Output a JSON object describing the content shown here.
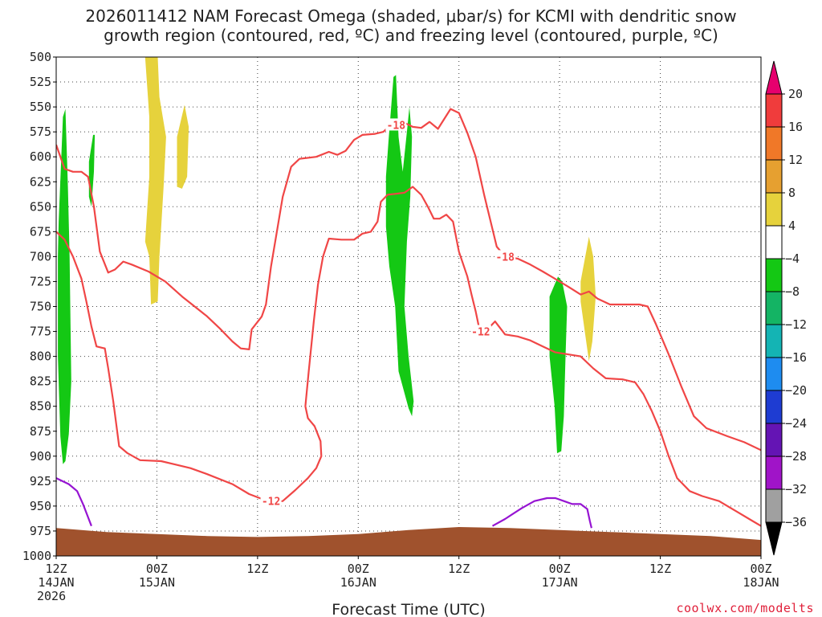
{
  "title": {
    "line1": "2026011412 NAM Forecast Omega (shaded, μbar/s) for KCMI with dendritic snow",
    "line2": "growth region (contoured, red, ºC) and freezing level (contoured, purple, ºC)"
  },
  "credit": "coolwx.com/modelts",
  "chart_data": {
    "type": "time-height contour",
    "title": "2026011412 NAM Forecast Omega (shaded, μbar/s) for KCMI with dendritic snow growth region (contoured, red, ºC) and freezing level (contoured, purple, ºC)",
    "xlabel": "Forecast Time (UTC)",
    "ylabel": "",
    "x_range_hours": [
      0,
      84
    ],
    "y_range": [
      500,
      1000
    ],
    "y_inverted": true,
    "yticks": [
      500,
      525,
      550,
      575,
      600,
      625,
      650,
      675,
      700,
      725,
      750,
      775,
      800,
      825,
      850,
      875,
      900,
      925,
      950,
      975,
      1000
    ],
    "xticks": [
      {
        "hour": 0,
        "line1": "12Z",
        "line2": "14JAN",
        "line3": "2026"
      },
      {
        "hour": 12,
        "line1": "00Z",
        "line2": "15JAN",
        "line3": ""
      },
      {
        "hour": 24,
        "line1": "12Z",
        "line2": "",
        "line3": ""
      },
      {
        "hour": 36,
        "line1": "00Z",
        "line2": "16JAN",
        "line3": ""
      },
      {
        "hour": 48,
        "line1": "12Z",
        "line2": "",
        "line3": ""
      },
      {
        "hour": 60,
        "line1": "00Z",
        "line2": "17JAN",
        "line3": ""
      },
      {
        "hour": 72,
        "line1": "12Z",
        "line2": "",
        "line3": ""
      },
      {
        "hour": 84,
        "line1": "00Z",
        "line2": "18JAN",
        "line3": ""
      }
    ],
    "grid": true,
    "colorbar": {
      "labels": [
        20,
        16,
        12,
        8,
        4,
        -4,
        -8,
        -12,
        -16,
        -20,
        -24,
        -28,
        -32,
        -36
      ],
      "colors": [
        "#f03c3c",
        "#f07828",
        "#e6a030",
        "#e6d23c",
        "#ffffff",
        "#14c814",
        "#14b464",
        "#14b4b4",
        "#1e8cf0",
        "#1e3cd2",
        "#6414b4",
        "#a014c8",
        "#a0a0a0"
      ],
      "top_triangle_color": "#e6006e",
      "bottom_triangle_color": "#000000"
    },
    "terrain_color": "#a0522d",
    "terrain": [
      [
        0,
        972
      ],
      [
        6,
        976
      ],
      [
        12,
        978
      ],
      [
        18,
        980
      ],
      [
        24,
        981
      ],
      [
        30,
        980
      ],
      [
        36,
        978
      ],
      [
        42,
        974
      ],
      [
        48,
        971
      ],
      [
        54,
        972
      ],
      [
        60,
        974
      ],
      [
        66,
        976
      ],
      [
        72,
        978
      ],
      [
        78,
        980
      ],
      [
        84,
        984
      ]
    ],
    "contours": [
      {
        "name": "dgz-12-upper",
        "color": "#f04646",
        "label": "-18",
        "label_positions": [
          [
            40.5,
            568
          ],
          [
            53.5,
            700
          ]
        ],
        "points": [
          [
            0,
            588
          ],
          [
            1,
            612
          ],
          [
            2,
            615
          ],
          [
            3,
            615
          ],
          [
            3.8,
            620
          ],
          [
            4.5,
            650
          ],
          [
            5.2,
            695
          ],
          [
            6.2,
            716
          ],
          [
            7,
            713
          ],
          [
            8,
            705
          ],
          [
            9,
            708
          ],
          [
            11,
            715
          ],
          [
            13,
            725
          ],
          [
            15,
            740
          ],
          [
            16.5,
            750
          ],
          [
            18,
            760
          ],
          [
            19.5,
            772
          ],
          [
            21,
            785
          ],
          [
            22,
            792
          ],
          [
            23,
            793
          ],
          [
            23.3,
            773
          ],
          [
            24.5,
            760
          ],
          [
            25,
            748
          ],
          [
            25.6,
            710
          ],
          [
            26.3,
            675
          ],
          [
            27,
            640
          ],
          [
            28,
            610
          ],
          [
            29,
            602
          ],
          [
            31,
            600
          ],
          [
            32.5,
            595
          ],
          [
            33.5,
            598
          ],
          [
            34.5,
            594
          ],
          [
            35.5,
            583
          ],
          [
            36.5,
            578
          ],
          [
            38,
            577
          ],
          [
            39,
            575
          ],
          [
            40,
            567
          ],
          [
            40.5,
            567
          ],
          [
            41.3,
            565
          ],
          [
            42.5,
            570
          ],
          [
            43.5,
            571
          ],
          [
            44.5,
            565
          ],
          [
            45.5,
            572
          ],
          [
            47,
            552
          ],
          [
            48,
            556
          ],
          [
            49,
            576
          ],
          [
            50,
            600
          ],
          [
            51,
            638
          ],
          [
            52.5,
            690
          ],
          [
            53.5,
            700
          ],
          [
            55,
            702
          ],
          [
            56.5,
            708
          ],
          [
            58,
            715
          ],
          [
            59,
            720
          ],
          [
            61,
            730
          ],
          [
            62.5,
            738
          ],
          [
            63.5,
            735
          ],
          [
            64.5,
            742
          ],
          [
            66,
            748
          ],
          [
            68,
            748
          ],
          [
            69.5,
            748
          ],
          [
            70.5,
            750
          ],
          [
            71.5,
            768
          ],
          [
            73,
            798
          ],
          [
            74.5,
            830
          ],
          [
            76,
            860
          ],
          [
            77.5,
            872
          ],
          [
            80,
            880
          ],
          [
            82,
            886
          ],
          [
            84,
            894
          ]
        ]
      },
      {
        "name": "dgz-12-lower",
        "color": "#f04646",
        "label": "-12",
        "label_positions": [
          [
            25.6,
            945
          ],
          [
            50.6,
            775
          ]
        ],
        "points": [
          [
            0,
            675
          ],
          [
            1,
            683
          ],
          [
            2,
            700
          ],
          [
            3,
            722
          ],
          [
            3.6,
            745
          ],
          [
            4.2,
            770
          ],
          [
            4.8,
            790
          ],
          [
            5.8,
            792
          ],
          [
            6.2,
            812
          ],
          [
            6.8,
            845
          ],
          [
            7.5,
            890
          ],
          [
            8.5,
            897
          ],
          [
            10,
            904
          ],
          [
            12.5,
            905
          ],
          [
            14,
            908
          ],
          [
            16,
            912
          ],
          [
            18,
            918
          ],
          [
            21,
            928
          ],
          [
            23,
            938
          ],
          [
            25.5,
            946
          ],
          [
            27,
            945
          ],
          [
            28.5,
            934
          ],
          [
            30,
            922
          ],
          [
            31,
            912
          ],
          [
            31.6,
            900
          ],
          [
            31.5,
            885
          ],
          [
            30.8,
            870
          ],
          [
            30,
            862
          ],
          [
            29.7,
            850
          ],
          [
            30.1,
            815
          ],
          [
            30.7,
            765
          ],
          [
            31.2,
            728
          ],
          [
            31.8,
            700
          ],
          [
            32.5,
            682
          ],
          [
            34,
            683
          ],
          [
            35.5,
            683
          ],
          [
            36.5,
            677
          ],
          [
            37.5,
            675
          ],
          [
            38.3,
            665
          ],
          [
            38.7,
            645
          ],
          [
            39.5,
            638
          ],
          [
            40.5,
            637
          ],
          [
            41.5,
            636
          ],
          [
            42.5,
            630
          ],
          [
            43.5,
            638
          ],
          [
            44.3,
            650
          ],
          [
            45,
            662
          ],
          [
            45.7,
            662
          ],
          [
            46.5,
            658
          ],
          [
            47.3,
            665
          ],
          [
            48,
            695
          ],
          [
            49,
            720
          ],
          [
            49.5,
            738
          ],
          [
            50,
            755
          ],
          [
            50.5,
            775
          ],
          [
            51.5,
            772
          ],
          [
            52.3,
            765
          ],
          [
            53.5,
            778
          ],
          [
            55,
            780
          ],
          [
            56.5,
            784
          ],
          [
            58,
            790
          ],
          [
            59.5,
            796
          ],
          [
            61,
            798
          ],
          [
            62.5,
            800
          ],
          [
            64,
            812
          ],
          [
            65.5,
            822
          ],
          [
            67.5,
            823
          ],
          [
            69,
            826
          ],
          [
            70,
            838
          ],
          [
            71,
            855
          ],
          [
            72,
            875
          ],
          [
            73,
            900
          ],
          [
            74,
            922
          ],
          [
            75.5,
            935
          ],
          [
            77,
            940
          ],
          [
            79,
            945
          ],
          [
            81,
            955
          ],
          [
            83,
            965
          ],
          [
            84,
            970
          ]
        ]
      },
      {
        "name": "freezing-level-1",
        "color": "#9614d2",
        "label": "",
        "label_positions": [],
        "points": [
          [
            0,
            922
          ],
          [
            1.5,
            928
          ],
          [
            2.5,
            935
          ],
          [
            3.2,
            948
          ],
          [
            4.2,
            970
          ]
        ]
      },
      {
        "name": "freezing-level-2",
        "color": "#9614d2",
        "label": "",
        "label_positions": [],
        "points": [
          [
            52,
            970
          ],
          [
            53.5,
            963
          ],
          [
            55.5,
            952
          ],
          [
            57,
            945
          ],
          [
            58.5,
            942
          ],
          [
            59.5,
            942
          ],
          [
            60.5,
            945
          ],
          [
            61.5,
            948
          ],
          [
            62.5,
            948
          ],
          [
            63.3,
            953
          ],
          [
            63.6,
            965
          ],
          [
            63.8,
            972
          ]
        ]
      }
    ],
    "shaded_regions": [
      {
        "name": "omega-green-1",
        "color": "#14c814",
        "points": [
          [
            0.3,
            665
          ],
          [
            0.8,
            560
          ],
          [
            1.1,
            552
          ],
          [
            1.4,
            630
          ],
          [
            1.6,
            700
          ],
          [
            1.8,
            825
          ],
          [
            1.5,
            878
          ],
          [
            1.1,
            905
          ],
          [
            0.8,
            908
          ],
          [
            0.5,
            880
          ],
          [
            0.2,
            800
          ],
          [
            0.2,
            700
          ]
        ]
      },
      {
        "name": "omega-green-2",
        "color": "#14c814",
        "points": [
          [
            3.9,
            605
          ],
          [
            4.4,
            578
          ],
          [
            4.6,
            578
          ],
          [
            4.5,
            615
          ],
          [
            4.2,
            650
          ],
          [
            3.9,
            640
          ]
        ]
      },
      {
        "name": "omega-green-3",
        "color": "#14c814",
        "points": [
          [
            39.6,
            585
          ],
          [
            40.2,
            520
          ],
          [
            40.5,
            518
          ],
          [
            40.8,
            580
          ],
          [
            41.3,
            615
          ],
          [
            41.8,
            575
          ],
          [
            42.1,
            550
          ],
          [
            42.4,
            580
          ],
          [
            42.2,
            640
          ],
          [
            41.8,
            685
          ],
          [
            41.5,
            750
          ],
          [
            42,
            800
          ],
          [
            42.6,
            845
          ],
          [
            42.4,
            860
          ],
          [
            42,
            852
          ],
          [
            40.8,
            815
          ],
          [
            40.4,
            750
          ],
          [
            39.7,
            710
          ],
          [
            39.3,
            670
          ],
          [
            39.3,
            620
          ]
        ]
      },
      {
        "name": "omega-green-4",
        "color": "#14c814",
        "points": [
          [
            58.8,
            740
          ],
          [
            59.8,
            720
          ],
          [
            60.3,
            725
          ],
          [
            60.9,
            750
          ],
          [
            60.7,
            800
          ],
          [
            60.5,
            860
          ],
          [
            60.2,
            895
          ],
          [
            59.7,
            897
          ],
          [
            59.4,
            850
          ],
          [
            58.8,
            800
          ]
        ]
      },
      {
        "name": "omega-yellow-1",
        "color": "#e6d23c",
        "points": [
          [
            10.6,
            500
          ],
          [
            12.1,
            500
          ],
          [
            12.3,
            540
          ],
          [
            13.1,
            580
          ],
          [
            12.8,
            630
          ],
          [
            12.3,
            700
          ],
          [
            12.1,
            745
          ],
          [
            11.3,
            748
          ],
          [
            11.1,
            700
          ],
          [
            10.6,
            685
          ],
          [
            11.1,
            620
          ],
          [
            11.1,
            560
          ]
        ]
      },
      {
        "name": "omega-yellow-2",
        "color": "#e6d23c",
        "points": [
          [
            14.4,
            580
          ],
          [
            15.3,
            548
          ],
          [
            15.8,
            570
          ],
          [
            15.6,
            620
          ],
          [
            15,
            632
          ],
          [
            14.4,
            630
          ]
        ]
      },
      {
        "name": "omega-yellow-3",
        "color": "#e6d23c",
        "points": [
          [
            62.5,
            725
          ],
          [
            63.5,
            680
          ],
          [
            64,
            700
          ],
          [
            64.3,
            740
          ],
          [
            63.9,
            785
          ],
          [
            63.5,
            805
          ],
          [
            63,
            775
          ],
          [
            62.5,
            745
          ]
        ]
      }
    ]
  }
}
